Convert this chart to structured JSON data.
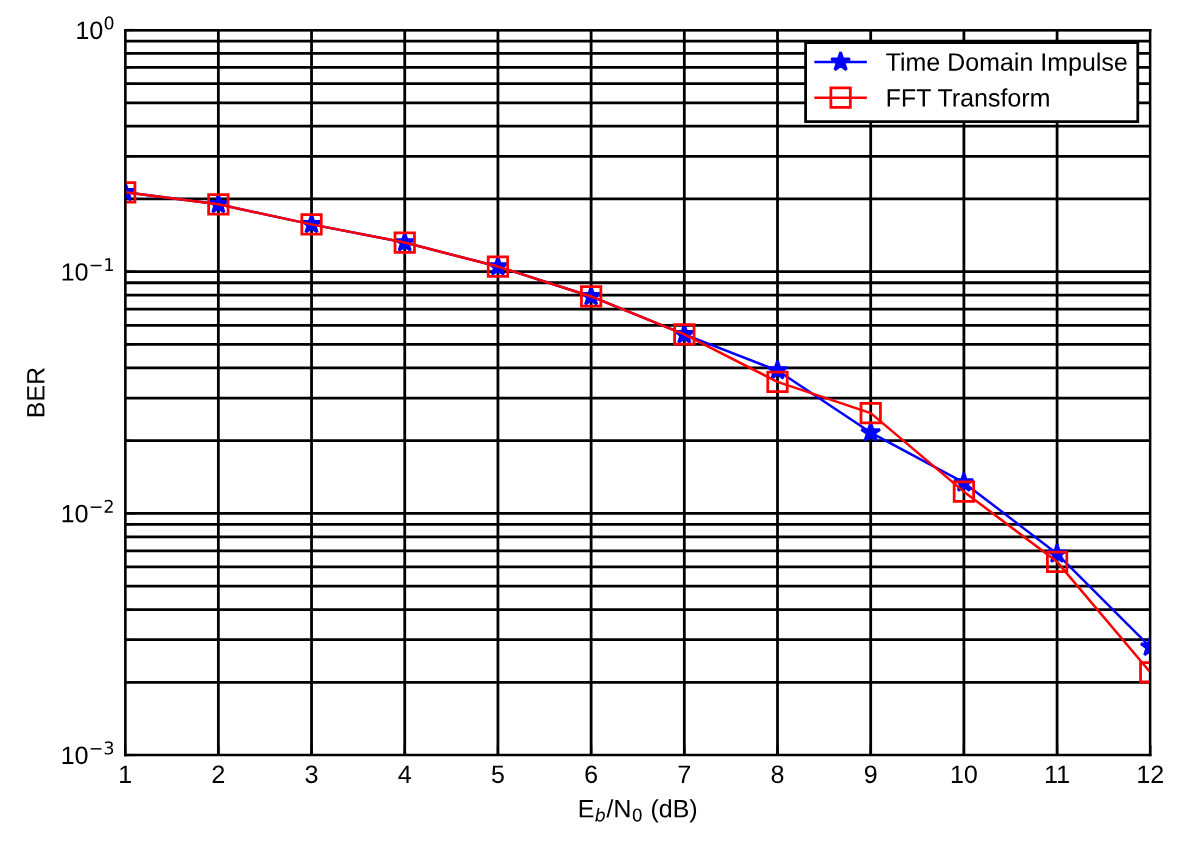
{
  "chart_data": {
    "type": "line",
    "xlabel": "E$_{b}$/N$_{0}$ (dB)",
    "ylabel": "BER",
    "x": [
      1,
      2,
      3,
      4,
      5,
      6,
      7,
      8,
      9,
      10,
      11,
      12
    ],
    "series": [
      {
        "name": "Time Domain Impulse",
        "color": "#0000ff",
        "marker": "star",
        "values": [
          0.213,
          0.19,
          0.157,
          0.132,
          0.105,
          0.079,
          0.055,
          0.039,
          0.0216,
          0.0134,
          0.0068,
          0.0028
        ]
      },
      {
        "name": "FFT Transform",
        "color": "#ff0000",
        "marker": "square",
        "values": [
          0.213,
          0.19,
          0.157,
          0.132,
          0.105,
          0.079,
          0.055,
          0.035,
          0.026,
          0.0123,
          0.0063,
          0.0022
        ]
      }
    ],
    "log": "y",
    "xlim": [
      1,
      12
    ],
    "xticks": [
      1,
      2,
      3,
      4,
      5,
      6,
      7,
      8,
      9,
      10,
      11,
      12
    ],
    "ylim": [
      0.001,
      1
    ],
    "yticks": [
      {
        "value": 0.001,
        "label": "10$^{−3}$"
      },
      {
        "value": 0.01,
        "label": "10$^{−2}$"
      },
      {
        "value": 0.1,
        "label": "10$^{−1}$"
      },
      {
        "value": 1,
        "label": "10$^{0}$"
      }
    ],
    "grid": true,
    "legend": "top right",
    "line_style": "solid"
  }
}
